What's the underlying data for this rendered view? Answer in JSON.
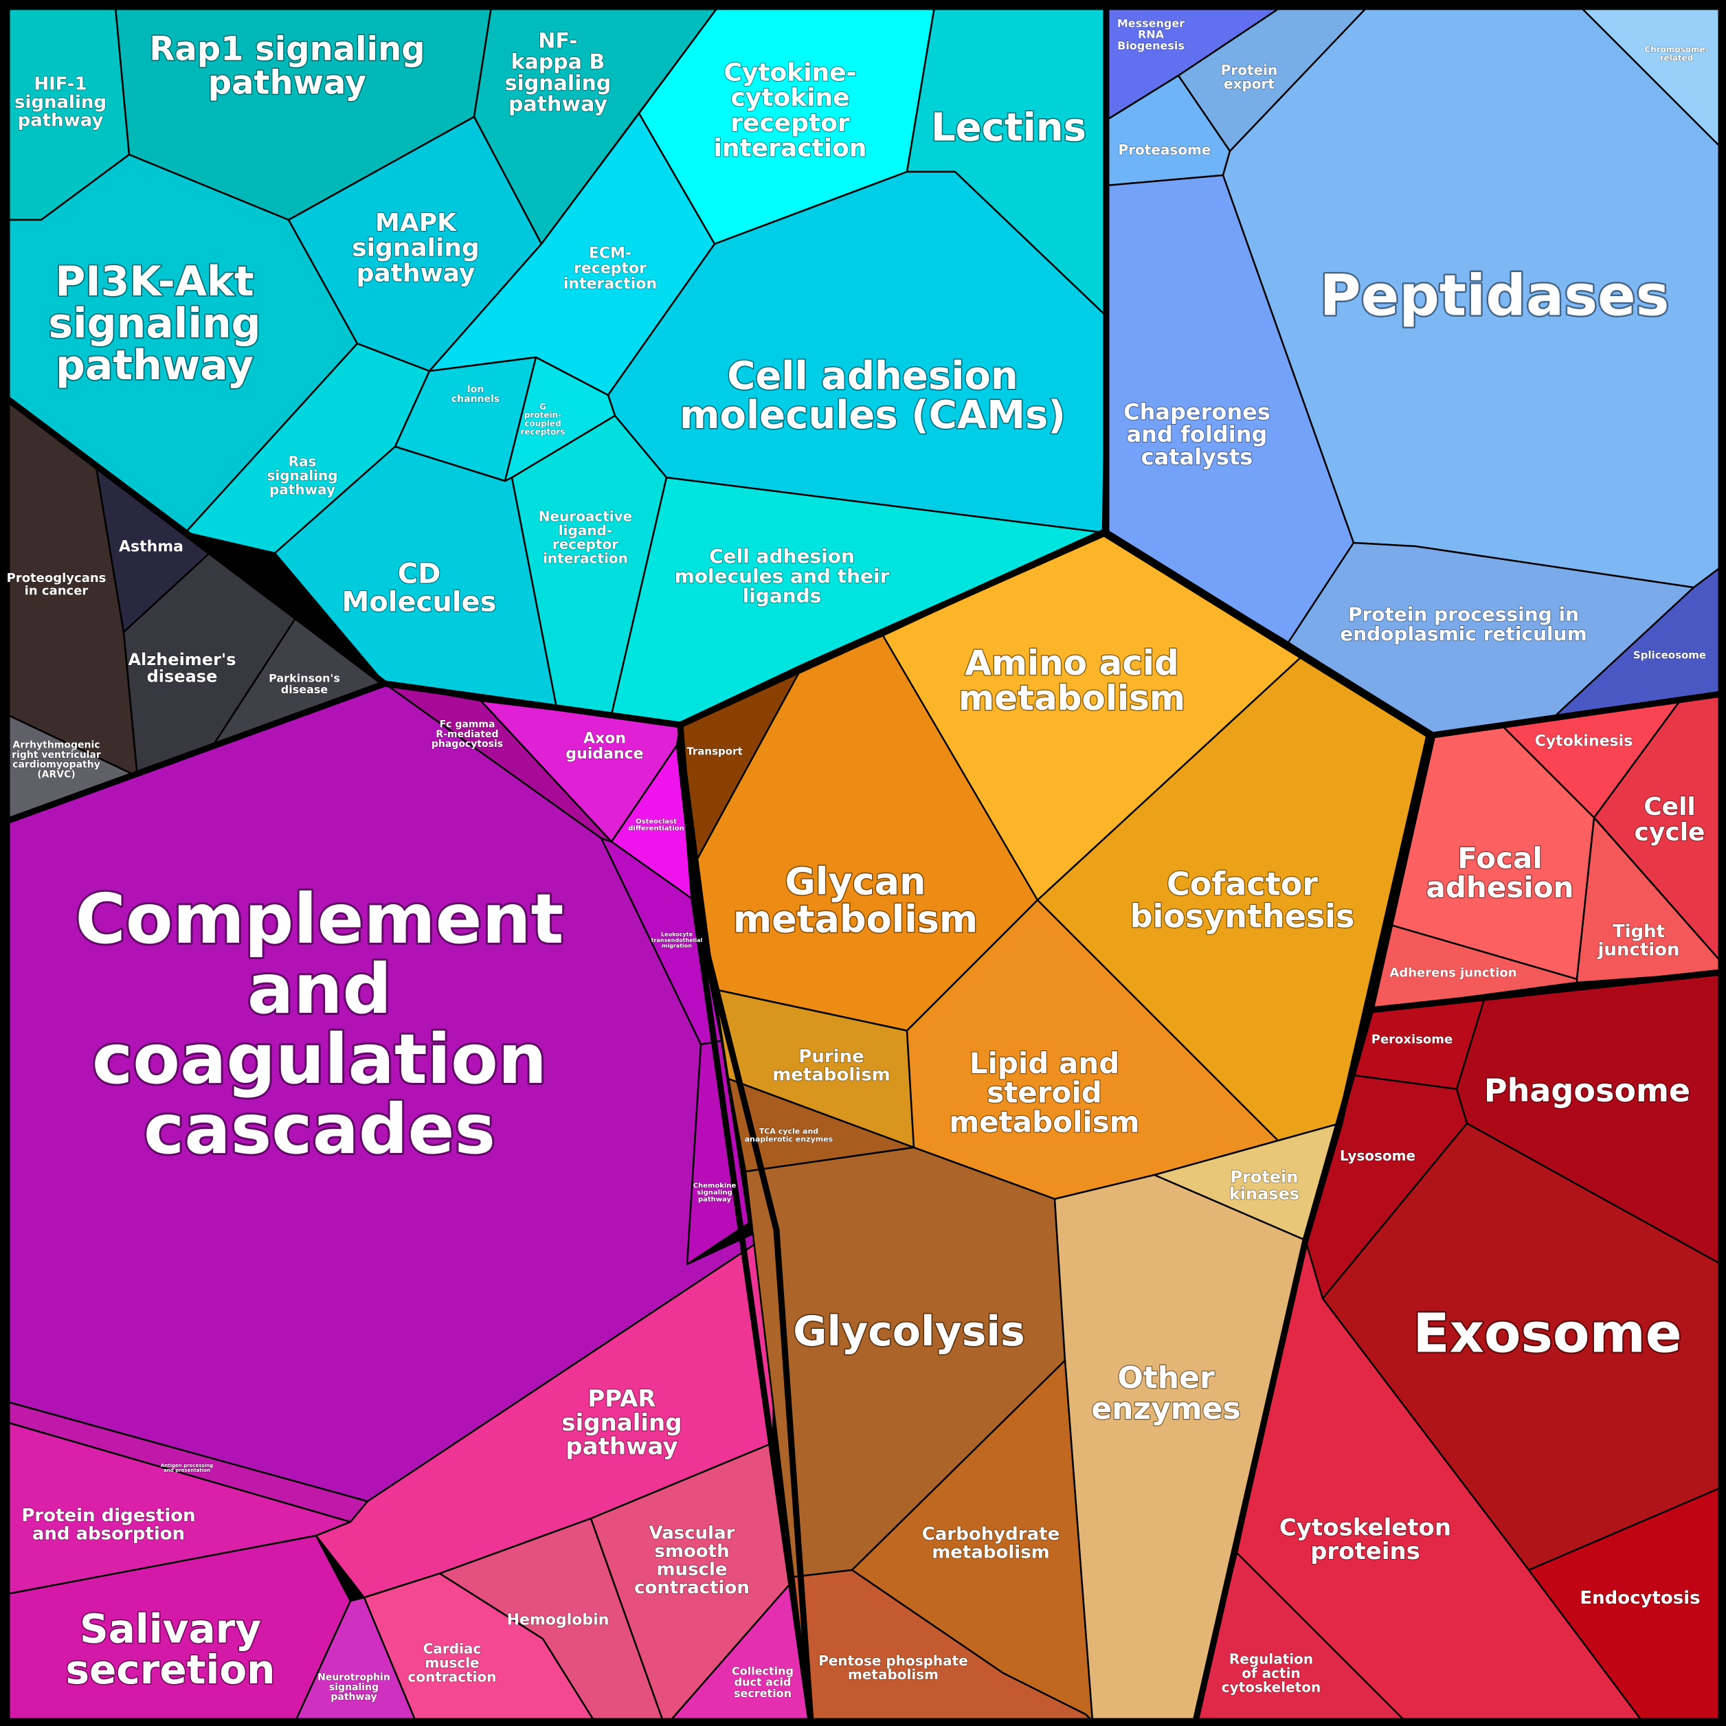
{
  "cells": [
    {
      "id": "hif1",
      "label": "HIF-1\nsignaling\npathway",
      "color": "#00c4c4"
    },
    {
      "id": "rap1",
      "label": "Rap1 signaling\npathway",
      "color": "#00b8b8"
    },
    {
      "id": "nfkb",
      "label": "NF-\nkappa B\nsignaling\npathway",
      "color": "#00bcbc"
    },
    {
      "id": "pi3k",
      "label": "PI3K-Akt\nsignaling\npathway",
      "color": "#00c6d2"
    },
    {
      "id": "mapk",
      "label": "MAPK\nsignaling\npathway",
      "color": "#00c8dc"
    },
    {
      "id": "ras",
      "label": "Ras\nsignaling\npathway",
      "color": "#00d6de"
    },
    {
      "id": "cytokine",
      "label": "Cytokine-\ncytokine\nreceptor\ninteraction",
      "color": "#00ffff"
    },
    {
      "id": "lectins",
      "label": "Lectins",
      "color": "#00d2d8"
    },
    {
      "id": "ecm",
      "label": "ECM-\nreceptor\ninteraction",
      "color": "#00dcf2"
    },
    {
      "id": "cams",
      "label": "Cell adhesion\nmolecules (CAMs)",
      "color": "#00cde6"
    },
    {
      "id": "ion",
      "label": "Ion\nchannels",
      "color": "#00d0e0"
    },
    {
      "id": "gpcr",
      "label": "G\nprotein-\ncoupled\nreceptors",
      "color": "#00e2e8"
    },
    {
      "id": "neuro",
      "label": "Neuroactive\nligand-\nreceptor\ninteraction",
      "color": "#00dede"
    },
    {
      "id": "cd",
      "label": "CD\nMolecules",
      "color": "#00ccdd"
    },
    {
      "id": "camlig",
      "label": "Cell adhesion\nmolecules and their\nligands",
      "color": "#00e4e0"
    },
    {
      "id": "proteo",
      "label": "Proteoglycans\nin cancer",
      "color": "#3c2c2a"
    },
    {
      "id": "asthma",
      "label": "Asthma",
      "color": "#2a2840"
    },
    {
      "id": "alz",
      "label": "Alzheimer's\ndisease",
      "color": "#383840"
    },
    {
      "id": "park",
      "label": "Parkinson's\ndisease",
      "color": "#404048"
    },
    {
      "id": "arvc",
      "label": "Arrhythmogenic\nright ventricular\ncardiomyopathy\n(ARVC)",
      "color": "#606068"
    },
    {
      "id": "fcgamma",
      "label": "Fc gamma\nR-mediated\nphagocytosis",
      "color": "#a80a98"
    },
    {
      "id": "axon",
      "label": "Axon\nguidance",
      "color": "#e020d4"
    },
    {
      "id": "osteo",
      "label": "Osteoclast\ndifferentiation",
      "color": "#f014ec"
    },
    {
      "id": "leuko",
      "label": "Leukocyte\ntransendothelial\nmigration",
      "color": "#b80cc0"
    },
    {
      "id": "chemo",
      "label": "Chemokine\nsignaling\npathway",
      "color": "#b80cb8"
    },
    {
      "id": "complement",
      "label": "Complement\nand\ncoagulation\ncascades",
      "color": "#b012b6"
    },
    {
      "id": "antigen",
      "label": "Antigen processing\nand presentation",
      "color": "#c018a8"
    },
    {
      "id": "protdig",
      "label": "Protein digestion\nand absorption",
      "color": "#da20a8"
    },
    {
      "id": "salivary",
      "label": "Salivary\nsecretion",
      "color": "#d418a8"
    },
    {
      "id": "neurotroph",
      "label": "Neurotrophin\nsignaling\npathway",
      "color": "#d030c0"
    },
    {
      "id": "ppar",
      "label": "PPAR\nsignaling\npathway",
      "color": "#ee3494"
    },
    {
      "id": "cardiac",
      "label": "Cardiac\nmuscle\ncontraction",
      "color": "#f44890"
    },
    {
      "id": "hemo",
      "label": "Hemoglobin",
      "color": "#e45080"
    },
    {
      "id": "vascular",
      "label": "Vascular\nsmooth\nmuscle\ncontraction",
      "color": "#e6507c"
    },
    {
      "id": "collecting",
      "label": "Collecting\nduct acid\nsecretion",
      "color": "#e430b0"
    },
    {
      "id": "transport",
      "label": "Transport",
      "color": "#8a4000"
    },
    {
      "id": "aminoacid",
      "label": "Amino acid\nmetabolism",
      "color": "#fcb428"
    },
    {
      "id": "glycan",
      "label": "Glycan\nmetabolism",
      "color": "#ec8c14"
    },
    {
      "id": "cofactor",
      "label": "Cofactor\nbiosynthesis",
      "color": "#eca218"
    },
    {
      "id": "purine",
      "label": "Purine\nmetabolism",
      "color": "#d8961e"
    },
    {
      "id": "lipid",
      "label": "Lipid and\nsteroid\nmetabolism",
      "color": "#ee9020"
    },
    {
      "id": "tca",
      "label": "TCA cycle and\nanaplerotic enzymes",
      "color": "#a85c1e"
    },
    {
      "id": "protkin",
      "label": "Protein\nkinases",
      "color": "#e8c878"
    },
    {
      "id": "glycolysis",
      "label": "Glycolysis",
      "color": "#ac6428"
    },
    {
      "id": "otherenz",
      "label": "Other\nenzymes",
      "color": "#e4b676"
    },
    {
      "id": "carbo",
      "label": "Carbohydrate\nmetabolism",
      "color": "#c06820"
    },
    {
      "id": "pentose",
      "label": "Pentose phosphate\nmetabolism",
      "color": "#c45a30"
    },
    {
      "id": "mrna",
      "label": "Messenger\nRNA\nBiogenesis",
      "color": "#6070ee"
    },
    {
      "id": "protexport",
      "label": "Protein\nexport",
      "color": "#78aee8"
    },
    {
      "id": "chromo",
      "label": "Chromosome-\nrelated",
      "color": "#98d0fa"
    },
    {
      "id": "proteasome",
      "label": "Proteasome",
      "color": "#70b4f8"
    },
    {
      "id": "peptidases",
      "label": "Peptidases",
      "color": "#7eb8f4"
    },
    {
      "id": "chaperones",
      "label": "Chaperones\nand folding\ncatalysts",
      "color": "#74a2f8"
    },
    {
      "id": "protproc",
      "label": "Protein processing in\nendoplasmic reticulum",
      "color": "#7aaaea"
    },
    {
      "id": "spliceo",
      "label": "Spliceosome",
      "color": "#4a58c4"
    },
    {
      "id": "cytokinesis",
      "label": "Cytokinesis",
      "color": "#fa4454"
    },
    {
      "id": "cellcycle",
      "label": "Cell\ncycle",
      "color": "#e83848"
    },
    {
      "id": "focal",
      "label": "Focal\nadhesion",
      "color": "#fc6060"
    },
    {
      "id": "tight",
      "label": "Tight\njunction",
      "color": "#f45858"
    },
    {
      "id": "adherens",
      "label": "Adherens junction",
      "color": "#f45a5a"
    },
    {
      "id": "peroxisome",
      "label": "Peroxisome",
      "color": "#b80a18"
    },
    {
      "id": "phagosome",
      "label": "Phagosome",
      "color": "#ac0818"
    },
    {
      "id": "lysosome",
      "label": "Lysosome",
      "color": "#b40a1a"
    },
    {
      "id": "exosome",
      "label": "Exosome",
      "color": "#b01418"
    },
    {
      "id": "cytoskel",
      "label": "Cytoskeleton\nproteins",
      "color": "#e22844"
    },
    {
      "id": "endocytosis",
      "label": "Endocytosis",
      "color": "#c00414"
    },
    {
      "id": "regactin",
      "label": "Regulation\nof actin\ncytoskeleton",
      "color": "#e02848"
    }
  ]
}
